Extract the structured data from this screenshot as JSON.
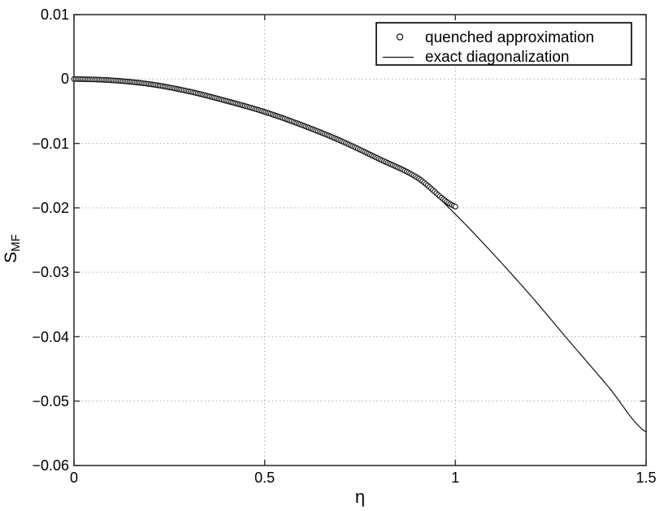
{
  "figure": {
    "background_color": "#ffffff",
    "frame_color": "#333333",
    "grid_color": "#9a9a9a",
    "line_color": "#111111",
    "marker_stroke_color": "#111111",
    "marker_fill_color": "#ffffff",
    "text_color": "#000000"
  },
  "chart_data": {
    "type": "line",
    "title": "",
    "xlabel": "η",
    "ylabel": "S_MF",
    "ylabel_base": "S",
    "ylabel_sub": "MF",
    "xlim": [
      0,
      1.5
    ],
    "ylim": [
      -0.06,
      0.01
    ],
    "grid": true,
    "x_ticks": [
      0,
      0.5,
      1,
      1.5
    ],
    "x_tick_labels": [
      "0",
      "0.5",
      "1",
      "1.5"
    ],
    "y_ticks": [
      0.01,
      0,
      -0.01,
      -0.02,
      -0.03,
      -0.04,
      -0.05,
      -0.06
    ],
    "y_tick_labels": [
      "0.01",
      "0",
      "−0.01",
      "−0.02",
      "−0.03",
      "−0.04",
      "−0.05",
      "−0.06"
    ],
    "legend": {
      "position": "top-right",
      "entries": [
        {
          "label": "quenched approximation",
          "marker": "circle"
        },
        {
          "label": "exact diagonalization",
          "marker": "line"
        }
      ]
    },
    "series": [
      {
        "name": "quenched approximation",
        "style": "circle-markers",
        "x": [
          0,
          0.1,
          0.2,
          0.3,
          0.4,
          0.5,
          0.6,
          0.7,
          0.8,
          0.9,
          1.0
        ],
        "y": [
          0,
          -0.0002,
          -0.0008,
          -0.0019,
          -0.0034,
          -0.0051,
          -0.0072,
          -0.0096,
          -0.0124,
          -0.0153,
          -0.0198
        ],
        "marker_count": 220
      },
      {
        "name": "exact diagonalization",
        "style": "solid-line",
        "x": [
          0,
          0.1,
          0.2,
          0.3,
          0.4,
          0.5,
          0.6,
          0.7,
          0.8,
          0.9,
          1.0,
          1.1,
          1.2,
          1.3,
          1.4,
          1.5
        ],
        "y": [
          0,
          -0.0002,
          -0.0008,
          -0.0019,
          -0.0034,
          -0.0051,
          -0.0072,
          -0.0096,
          -0.0124,
          -0.0155,
          -0.021,
          -0.0272,
          -0.0338,
          -0.0408,
          -0.0477,
          -0.0548
        ]
      }
    ]
  }
}
